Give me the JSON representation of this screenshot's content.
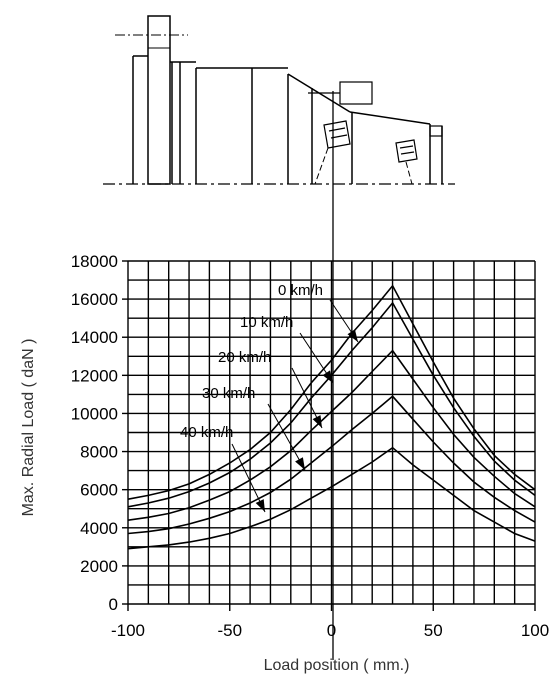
{
  "chart_data": {
    "type": "line",
    "title": "",
    "xlabel": "Load position ( mm.)",
    "ylabel": "Max. Radial Load ( daN )",
    "xlim": [
      -100,
      100
    ],
    "ylim": [
      0,
      18000
    ],
    "grid": true,
    "x_ticks": [
      -100,
      -50,
      0,
      50,
      100
    ],
    "y_ticks": [
      0,
      2000,
      4000,
      6000,
      8000,
      10000,
      12000,
      14000,
      16000,
      18000
    ],
    "x": [
      -100,
      -90,
      -80,
      -70,
      -60,
      -50,
      -40,
      -30,
      -20,
      -10,
      0,
      10,
      20,
      30,
      40,
      50,
      60,
      70,
      80,
      90,
      100
    ],
    "series": [
      {
        "name": "0 km/h",
        "values": [
          5500,
          5700,
          5950,
          6300,
          6800,
          7400,
          8100,
          9000,
          10200,
          11600,
          12800,
          14200,
          15400,
          16700,
          14700,
          12700,
          10800,
          9200,
          7800,
          6800,
          6000
        ]
      },
      {
        "name": "10 km/h",
        "values": [
          5100,
          5300,
          5550,
          5900,
          6350,
          6900,
          7600,
          8450,
          9500,
          10800,
          12000,
          13300,
          14500,
          15800,
          13900,
          12000,
          10300,
          8800,
          7500,
          6500,
          5700
        ]
      },
      {
        "name": "20 km/h",
        "values": [
          4400,
          4550,
          4750,
          5050,
          5450,
          5900,
          6500,
          7200,
          8050,
          9100,
          10100,
          11100,
          12200,
          13300,
          11800,
          10300,
          8900,
          7700,
          6700,
          5800,
          5100
        ]
      },
      {
        "name": "30 km/h",
        "values": [
          3700,
          3800,
          3950,
          4200,
          4500,
          4850,
          5300,
          5850,
          6550,
          7400,
          8250,
          9150,
          10000,
          10900,
          9700,
          8500,
          7400,
          6400,
          5600,
          4900,
          4300
        ]
      },
      {
        "name": "40 km/h",
        "values": [
          2900,
          3000,
          3100,
          3250,
          3450,
          3700,
          4050,
          4450,
          4950,
          5550,
          6150,
          6800,
          7450,
          8200,
          7300,
          6500,
          5700,
          4900,
          4300,
          3700,
          3300
        ]
      }
    ]
  }
}
